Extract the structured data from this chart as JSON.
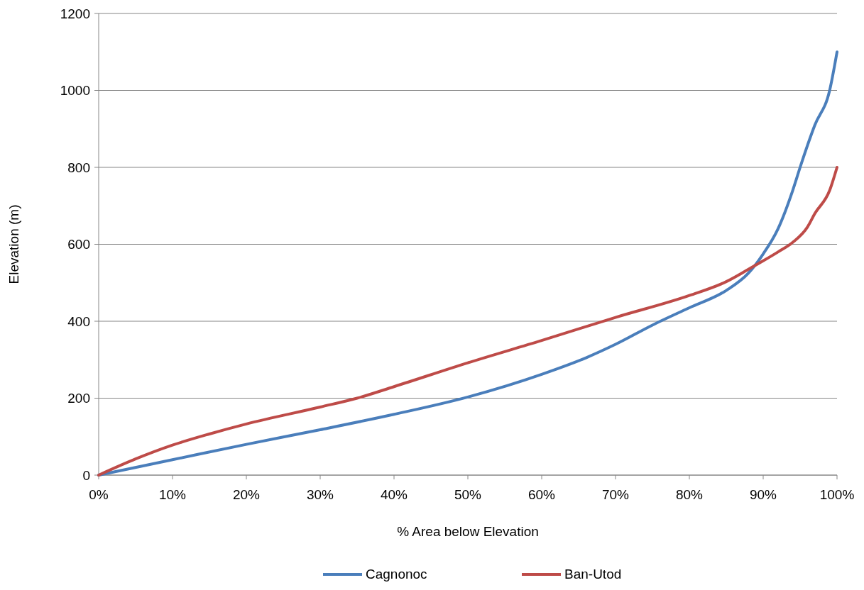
{
  "chart_data": {
    "type": "line",
    "xlabel": "% Area below Elevation",
    "ylabel": "Elevation (m)",
    "xlim": [
      0,
      100
    ],
    "ylim": [
      0,
      1200
    ],
    "xticks": [
      {
        "value": 0,
        "label": "0%"
      },
      {
        "value": 10,
        "label": "10%"
      },
      {
        "value": 20,
        "label": "20%"
      },
      {
        "value": 30,
        "label": "30%"
      },
      {
        "value": 40,
        "label": "40%"
      },
      {
        "value": 50,
        "label": "50%"
      },
      {
        "value": 60,
        "label": "60%"
      },
      {
        "value": 70,
        "label": "70%"
      },
      {
        "value": 80,
        "label": "80%"
      },
      {
        "value": 90,
        "label": "90%"
      },
      {
        "value": 100,
        "label": "100%"
      }
    ],
    "yticks": [
      0,
      200,
      400,
      600,
      800,
      1000,
      1200
    ],
    "grid": "y",
    "legend": "bottom",
    "marker": "none",
    "line_style": "solid",
    "series": [
      {
        "name": "Cagnonoc",
        "color": "#4a7ebb",
        "x": [
          0,
          10,
          20,
          30,
          40,
          50,
          60,
          66,
          70,
          75,
          80,
          85,
          88,
          90,
          92,
          94,
          95,
          97,
          99,
          100
        ],
        "values": [
          0,
          40,
          80,
          118,
          158,
          203,
          262,
          305,
          340,
          390,
          435,
          480,
          525,
          575,
          640,
          740,
          800,
          910,
          1000,
          1100
        ]
      },
      {
        "name": "Ban-Utod",
        "color": "#be4b48",
        "x": [
          0,
          5,
          10,
          15,
          20,
          30,
          35,
          40,
          50,
          60,
          70,
          80,
          85,
          88,
          90,
          92,
          94,
          96,
          97,
          99,
          100
        ],
        "values": [
          0,
          42,
          78,
          107,
          133,
          177,
          200,
          230,
          292,
          350,
          410,
          467,
          503,
          535,
          557,
          580,
          605,
          645,
          680,
          740,
          800
        ]
      }
    ]
  }
}
